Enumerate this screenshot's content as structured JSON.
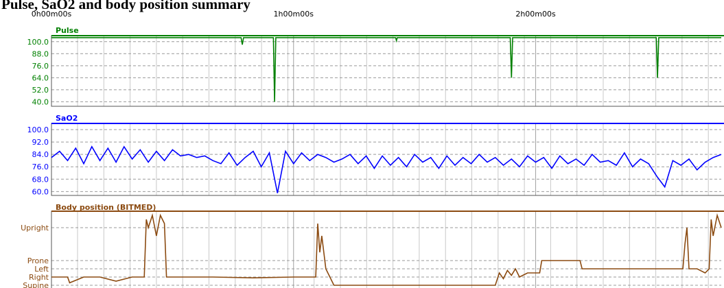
{
  "chart_data": [
    {
      "type": "line",
      "title": "Pulse, SaO2 and body position summary",
      "label": "Pulse",
      "color": "#008000",
      "xlim": [
        0,
        166
      ],
      "xticks": [
        {
          "value": 0,
          "label": "0h00m00s"
        },
        {
          "value": 60,
          "label": "1h00m00s"
        },
        {
          "value": 120,
          "label": "2h00m00s"
        }
      ],
      "ylim": [
        35.5,
        106
      ],
      "yticks": [
        {
          "value": 100,
          "label": "100.0"
        },
        {
          "value": 88,
          "label": "88.0"
        },
        {
          "value": 76,
          "label": "76.0"
        },
        {
          "value": 64,
          "label": "64.0"
        },
        {
          "value": 52,
          "label": "52.0"
        },
        {
          "value": 40,
          "label": "40.0"
        }
      ],
      "x": [
        0,
        47,
        47.3,
        47.6,
        55,
        55.3,
        55.6,
        85.3,
        85.5,
        85.7,
        113.7,
        114,
        114.3,
        149.9,
        150.2,
        150.5,
        166
      ],
      "values": [
        104,
        104,
        97,
        104,
        104,
        40,
        104,
        104,
        101,
        104,
        104,
        64,
        104,
        104,
        64,
        104,
        104
      ]
    },
    {
      "type": "line",
      "label": "SaO2",
      "color": "#0000ff",
      "xlim": [
        0,
        166
      ],
      "ylim": [
        57.5,
        104
      ],
      "yticks": [
        {
          "value": 100,
          "label": "100.0"
        },
        {
          "value": 92,
          "label": "92.0"
        },
        {
          "value": 84,
          "label": "84.0"
        },
        {
          "value": 76,
          "label": "76.0"
        },
        {
          "value": 68,
          "label": "68.0"
        },
        {
          "value": 60,
          "label": "60.0"
        }
      ],
      "x": [
        0,
        2,
        4,
        6,
        8,
        10,
        12,
        14,
        16,
        18,
        20,
        22,
        24,
        26,
        28,
        30,
        32,
        34,
        36,
        38,
        40,
        42,
        44,
        46,
        48,
        50,
        52,
        54,
        56,
        58,
        60,
        62,
        64,
        66,
        68,
        70,
        72,
        74,
        76,
        78,
        80,
        82,
        84,
        86,
        88,
        90,
        92,
        94,
        96,
        98,
        100,
        102,
        104,
        106,
        108,
        110,
        112,
        114,
        116,
        118,
        120,
        122,
        124,
        126,
        128,
        130,
        132,
        134,
        136,
        138,
        140,
        142,
        144,
        146,
        148,
        150,
        152,
        154,
        156,
        158,
        160,
        162,
        164,
        166
      ],
      "values": [
        82,
        86,
        80,
        88,
        78,
        89,
        80,
        88,
        79,
        89,
        81,
        87,
        79,
        86,
        80,
        87,
        83,
        84,
        82,
        83,
        80,
        78,
        85,
        77,
        82,
        86,
        76,
        85,
        59,
        86,
        78,
        85,
        80,
        84,
        82,
        79,
        81,
        84,
        78,
        83,
        75,
        83,
        77,
        82,
        76,
        84,
        79,
        82,
        75,
        83,
        77,
        82,
        78,
        84,
        79,
        82,
        77,
        81,
        76,
        83,
        79,
        82,
        75,
        83,
        78,
        81,
        77,
        84,
        79,
        80,
        77,
        85,
        76,
        81,
        78,
        70,
        63,
        80,
        77,
        81,
        74,
        79,
        82,
        84
      ]
    },
    {
      "type": "line",
      "label": "Body position (BITMED)",
      "color": "#8b4a10",
      "xlim": [
        0,
        166
      ],
      "ylim": [
        -0.5,
        9
      ],
      "yticks": [
        {
          "value": 7,
          "label": "Upright"
        },
        {
          "value": 3,
          "label": "Prone"
        },
        {
          "value": 2,
          "label": "Left"
        },
        {
          "value": 1,
          "label": "Right"
        },
        {
          "value": 0,
          "label": "Supine"
        }
      ],
      "x": [
        0,
        4,
        4.5,
        8,
        12,
        16,
        20,
        23,
        23.5,
        24,
        25,
        26,
        27,
        28,
        28.5,
        30,
        40,
        50,
        60,
        65.5,
        66,
        66.5,
        67,
        68,
        70,
        80,
        90,
        100,
        110,
        111,
        112,
        113,
        114,
        115,
        116,
        118,
        121,
        121.5,
        125,
        131,
        131.5,
        135,
        145,
        155,
        156.5,
        157,
        157.5,
        158,
        160,
        162,
        163,
        163.5,
        164,
        165,
        166
      ],
      "values": [
        1,
        1,
        0.3,
        1,
        1,
        0.5,
        1,
        1,
        8,
        7,
        8.5,
        6,
        8.5,
        7.5,
        1,
        1,
        1,
        0.9,
        1,
        1,
        7.5,
        4,
        6,
        2,
        0,
        0,
        0,
        0,
        0,
        1.5,
        0.8,
        1.8,
        1.2,
        2,
        1,
        1.5,
        1.5,
        3,
        3,
        3,
        2,
        2,
        2,
        2,
        2,
        5,
        7,
        2,
        2,
        1.5,
        2,
        8,
        6,
        8.5,
        7
      ]
    }
  ]
}
